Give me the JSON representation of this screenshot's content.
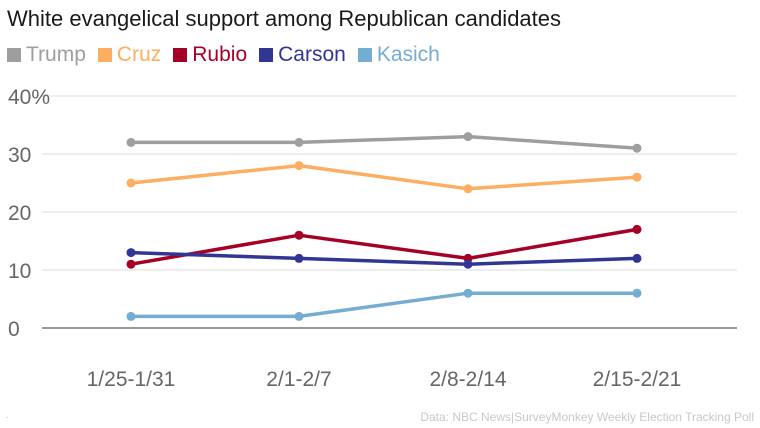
{
  "chart_data": {
    "type": "line",
    "title": "White evangelical support among Republican candidates",
    "categories": [
      "1/25-1/31",
      "2/1-2/7",
      "2/8-2/14",
      "2/15-2/21"
    ],
    "y_ticks": [
      "0",
      "10",
      "20",
      "30",
      "40%"
    ],
    "ylim": [
      0,
      40
    ],
    "grid": true,
    "legend_position": "top-left",
    "series": [
      {
        "name": "Trump",
        "color": "#9e9e9e",
        "values": [
          32,
          32,
          33,
          31
        ]
      },
      {
        "name": "Cruz",
        "color": "#fdae61",
        "values": [
          25,
          28,
          24,
          26
        ]
      },
      {
        "name": "Rubio",
        "color": "#a50026",
        "values": [
          11,
          16,
          12,
          17
        ]
      },
      {
        "name": "Carson",
        "color": "#313695",
        "values": [
          13,
          12,
          11,
          12
        ]
      },
      {
        "name": "Kasich",
        "color": "#74add1",
        "values": [
          2,
          2,
          6,
          6
        ]
      }
    ],
    "source": "Data: NBC News|SurveyMonkey Weekly Election Tracking Poll",
    "footnote_mark": "."
  }
}
